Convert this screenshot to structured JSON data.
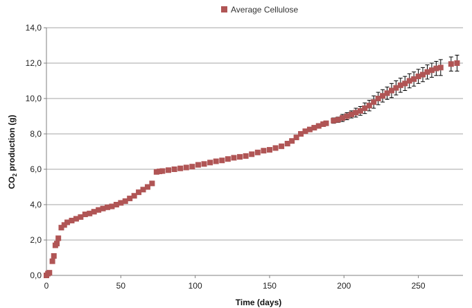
{
  "chart_data": {
    "type": "scatter",
    "title": "",
    "xlabel": "Time (days)",
    "ylabel_main": "CO",
    "ylabel_sub": "2",
    "ylabel_rest": " production (g)",
    "xlim": [
      0,
      280
    ],
    "ylim": [
      0,
      14
    ],
    "x_ticks": [
      0,
      50,
      100,
      150,
      200,
      250
    ],
    "x_tick_labels": [
      "0",
      "50",
      "100",
      "150",
      "200",
      "250"
    ],
    "y_ticks": [
      0,
      2,
      4,
      6,
      8,
      10,
      12,
      14
    ],
    "y_tick_labels": [
      "0,0",
      "2,0",
      "4,0",
      "6,0",
      "8,0",
      "10,0",
      "12,0",
      "14,0"
    ],
    "grid": "horizontal",
    "legend_position": "top-center",
    "colors": {
      "marker": "#b05555",
      "grid": "#a6a6a6",
      "axis": "#808080",
      "error_bar": "#000000"
    },
    "series": [
      {
        "name": "Average Cellulose",
        "points": [
          {
            "x": 0,
            "y": 0.0
          },
          {
            "x": 1,
            "y": 0.1
          },
          {
            "x": 2,
            "y": 0.15
          },
          {
            "x": 4,
            "y": 0.8
          },
          {
            "x": 5,
            "y": 1.1
          },
          {
            "x": 6,
            "y": 1.7
          },
          {
            "x": 7,
            "y": 1.8
          },
          {
            "x": 8,
            "y": 2.1
          },
          {
            "x": 10,
            "y": 2.7
          },
          {
            "x": 12,
            "y": 2.85
          },
          {
            "x": 14,
            "y": 3.0
          },
          {
            "x": 17,
            "y": 3.1
          },
          {
            "x": 20,
            "y": 3.2
          },
          {
            "x": 23,
            "y": 3.3
          },
          {
            "x": 26,
            "y": 3.45
          },
          {
            "x": 29,
            "y": 3.5
          },
          {
            "x": 32,
            "y": 3.6
          },
          {
            "x": 35,
            "y": 3.7
          },
          {
            "x": 38,
            "y": 3.78
          },
          {
            "x": 41,
            "y": 3.85
          },
          {
            "x": 44,
            "y": 3.9
          },
          {
            "x": 47,
            "y": 4.0
          },
          {
            "x": 50,
            "y": 4.1
          },
          {
            "x": 53,
            "y": 4.2
          },
          {
            "x": 56,
            "y": 4.35
          },
          {
            "x": 59,
            "y": 4.5
          },
          {
            "x": 62,
            "y": 4.7
          },
          {
            "x": 65,
            "y": 4.85
          },
          {
            "x": 68,
            "y": 5.0
          },
          {
            "x": 71,
            "y": 5.2
          },
          {
            "x": 74,
            "y": 5.85
          },
          {
            "x": 76,
            "y": 5.88
          },
          {
            "x": 78,
            "y": 5.9
          },
          {
            "x": 82,
            "y": 5.95
          },
          {
            "x": 86,
            "y": 6.0
          },
          {
            "x": 90,
            "y": 6.05
          },
          {
            "x": 94,
            "y": 6.1
          },
          {
            "x": 98,
            "y": 6.15
          },
          {
            "x": 102,
            "y": 6.25
          },
          {
            "x": 106,
            "y": 6.3
          },
          {
            "x": 110,
            "y": 6.38
          },
          {
            "x": 114,
            "y": 6.45
          },
          {
            "x": 118,
            "y": 6.5
          },
          {
            "x": 122,
            "y": 6.58
          },
          {
            "x": 126,
            "y": 6.65
          },
          {
            "x": 130,
            "y": 6.7
          },
          {
            "x": 134,
            "y": 6.75
          },
          {
            "x": 138,
            "y": 6.85
          },
          {
            "x": 142,
            "y": 6.95
          },
          {
            "x": 146,
            "y": 7.05
          },
          {
            "x": 150,
            "y": 7.1
          },
          {
            "x": 154,
            "y": 7.2
          },
          {
            "x": 158,
            "y": 7.3
          },
          {
            "x": 162,
            "y": 7.45
          },
          {
            "x": 165,
            "y": 7.6
          },
          {
            "x": 168,
            "y": 7.8
          },
          {
            "x": 171,
            "y": 8.0
          },
          {
            "x": 174,
            "y": 8.15
          },
          {
            "x": 177,
            "y": 8.25
          },
          {
            "x": 180,
            "y": 8.35
          },
          {
            "x": 183,
            "y": 8.45
          },
          {
            "x": 186,
            "y": 8.55
          },
          {
            "x": 188,
            "y": 8.6
          },
          {
            "x": 193,
            "y": 8.75,
            "err": 0.15
          },
          {
            "x": 196,
            "y": 8.8,
            "err": 0.15
          },
          {
            "x": 199,
            "y": 8.9,
            "err": 0.2
          },
          {
            "x": 202,
            "y": 9.0,
            "err": 0.2
          },
          {
            "x": 205,
            "y": 9.1,
            "err": 0.2
          },
          {
            "x": 208,
            "y": 9.2,
            "err": 0.25
          },
          {
            "x": 211,
            "y": 9.3,
            "err": 0.25
          },
          {
            "x": 214,
            "y": 9.45,
            "err": 0.3
          },
          {
            "x": 217,
            "y": 9.6,
            "err": 0.3
          },
          {
            "x": 220,
            "y": 9.8,
            "err": 0.35
          },
          {
            "x": 223,
            "y": 10.0,
            "err": 0.35
          },
          {
            "x": 226,
            "y": 10.15,
            "err": 0.35
          },
          {
            "x": 229,
            "y": 10.3,
            "err": 0.35
          },
          {
            "x": 232,
            "y": 10.45,
            "err": 0.4
          },
          {
            "x": 235,
            "y": 10.6,
            "err": 0.4
          },
          {
            "x": 238,
            "y": 10.75,
            "err": 0.4
          },
          {
            "x": 241,
            "y": 10.85,
            "err": 0.4
          },
          {
            "x": 244,
            "y": 11.0,
            "err": 0.4
          },
          {
            "x": 247,
            "y": 11.1,
            "err": 0.4
          },
          {
            "x": 250,
            "y": 11.25,
            "err": 0.4
          },
          {
            "x": 253,
            "y": 11.35,
            "err": 0.4
          },
          {
            "x": 256,
            "y": 11.5,
            "err": 0.4
          },
          {
            "x": 259,
            "y": 11.6,
            "err": 0.4
          },
          {
            "x": 262,
            "y": 11.7,
            "err": 0.4
          },
          {
            "x": 265,
            "y": 11.75,
            "err": 0.45
          },
          {
            "x": 272,
            "y": 11.95,
            "err": 0.4
          },
          {
            "x": 276,
            "y": 12.0,
            "err": 0.45
          }
        ]
      }
    ]
  }
}
